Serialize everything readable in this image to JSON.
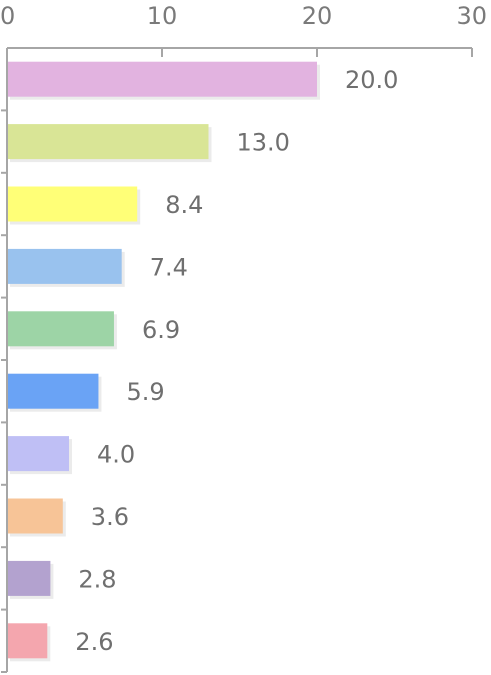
{
  "chart_data": {
    "type": "bar",
    "orientation": "horizontal",
    "xlim": [
      0,
      30
    ],
    "xticks": [
      "0",
      "10",
      "20",
      "30"
    ],
    "values": [
      20.0,
      13.0,
      8.4,
      7.4,
      6.9,
      5.9,
      4.0,
      3.6,
      2.8,
      2.6
    ],
    "value_labels": [
      "20.0",
      "13.0",
      "8.4",
      "7.4",
      "6.9",
      "5.9",
      "4.0",
      "3.6",
      "2.8",
      "2.6"
    ],
    "colors": [
      "#e2b3e0",
      "#d9e596",
      "#ffff77",
      "#99c2ee",
      "#9dd4a6",
      "#6aa3f5",
      "#bfbff5",
      "#f7c497",
      "#b3a2cf",
      "#f4a6ae"
    ],
    "grid": false,
    "axis_position": "top",
    "legend": "none"
  }
}
